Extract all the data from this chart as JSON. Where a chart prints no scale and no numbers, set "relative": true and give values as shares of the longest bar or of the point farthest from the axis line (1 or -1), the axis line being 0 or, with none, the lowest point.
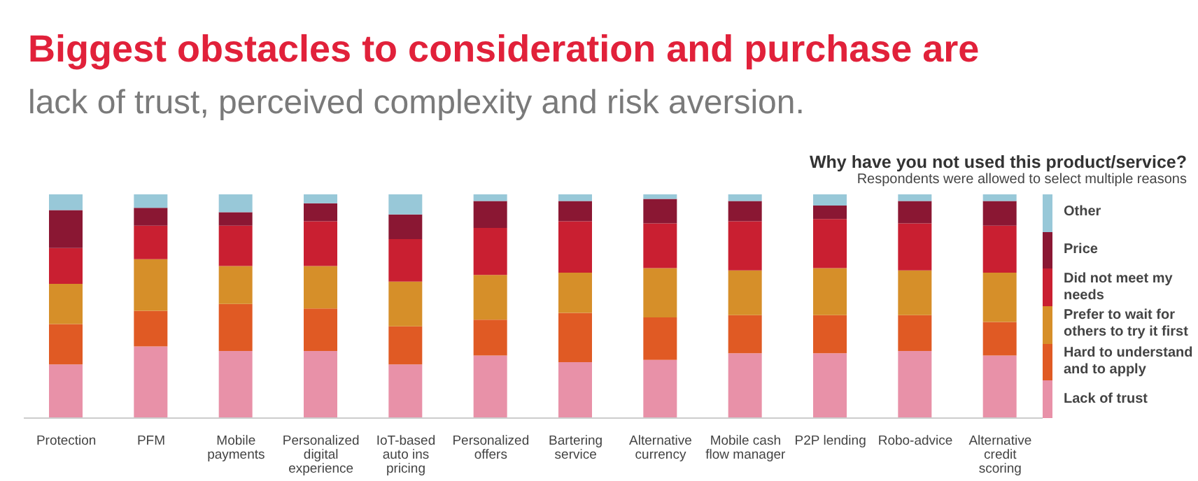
{
  "chart_data": {
    "type": "bar",
    "title": "Biggest obstacles to consideration and purchase are",
    "subtitle": "lack of trust, perceived complexity and risk aversion.",
    "legend_title": "Why have you not used this product/service?",
    "annotations": [
      "Respondents were allowed to select multiple reasons"
    ],
    "categories": [
      "Protection",
      "PFM",
      "Mobile payments",
      "Personalized digital experience",
      "IoT-based auto ins pricing",
      "Personalized offers",
      "Bartering service",
      "Alternative currency",
      "Mobile cash flow manager",
      "P2P lending",
      "Robo-advice",
      "Alternative credit scoring"
    ],
    "stacked": true,
    "relative": true,
    "legend": "right",
    "series": [
      {
        "name": "Lack of trust",
        "color": "#e891a8",
        "values": [
          0.24,
          0.32,
          0.3,
          0.3,
          0.24,
          0.28,
          0.25,
          0.26,
          0.29,
          0.29,
          0.3,
          0.28
        ]
      },
      {
        "name": "Hard to understand and to apply",
        "color": "#e05a24",
        "values": [
          0.18,
          0.16,
          0.21,
          0.19,
          0.17,
          0.16,
          0.22,
          0.19,
          0.17,
          0.17,
          0.16,
          0.15
        ]
      },
      {
        "name": "Prefer to wait for others to try it first",
        "color": "#d68f29",
        "values": [
          0.18,
          0.23,
          0.17,
          0.19,
          0.2,
          0.2,
          0.18,
          0.22,
          0.2,
          0.21,
          0.2,
          0.22
        ]
      },
      {
        "name": "Did not meet my needs",
        "color": "#c91f31",
        "values": [
          0.16,
          0.15,
          0.18,
          0.2,
          0.19,
          0.21,
          0.23,
          0.2,
          0.22,
          0.22,
          0.21,
          0.21
        ]
      },
      {
        "name": "Price",
        "color": "#8a1733",
        "values": [
          0.17,
          0.08,
          0.06,
          0.08,
          0.11,
          0.12,
          0.09,
          0.11,
          0.09,
          0.06,
          0.1,
          0.11
        ]
      },
      {
        "name": "Other",
        "color": "#98c8d8",
        "values": [
          0.07,
          0.06,
          0.08,
          0.04,
          0.09,
          0.03,
          0.03,
          0.02,
          0.03,
          0.05,
          0.03,
          0.03
        ]
      }
    ]
  }
}
